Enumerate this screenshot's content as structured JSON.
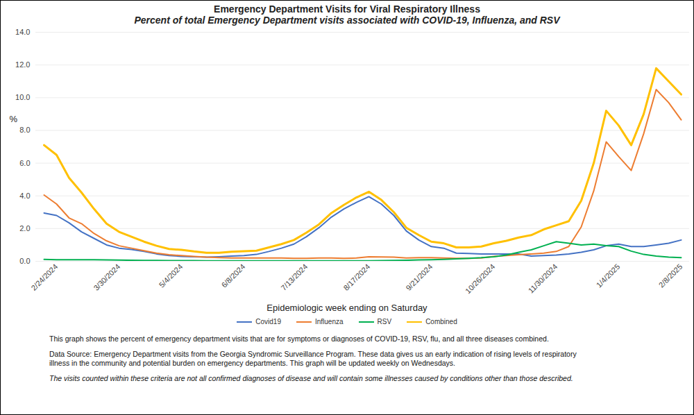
{
  "chart_data": {
    "type": "line",
    "title": "Emergency Department Visits for Viral Respiratory Illness",
    "subtitle": "Percent of total Emergency Department visits associated with COVID-19, Influenza, and RSV",
    "xlabel": "Epidemiologic week ending on Saturday",
    "ylabel": "%",
    "categories": [
      null,
      "2/24/2024",
      null,
      null,
      null,
      null,
      "3/30/2024",
      null,
      null,
      null,
      null,
      "5/4/2024",
      null,
      null,
      null,
      null,
      "6/8/2024",
      null,
      null,
      null,
      null,
      "7/13/2024",
      null,
      null,
      null,
      null,
      "8/17/2024",
      null,
      null,
      null,
      null,
      "9/21/2024",
      null,
      null,
      null,
      null,
      "10/26/2024",
      null,
      null,
      null,
      null,
      "11/30/2024",
      null,
      null,
      null,
      null,
      "1/4/2025",
      null,
      null,
      null,
      null,
      "2/8/2025"
    ],
    "series": [
      {
        "name": "Covid19",
        "color": "#4472c4",
        "values": [
          2.95,
          2.8,
          2.35,
          1.8,
          1.4,
          1.0,
          0.8,
          0.72,
          0.6,
          0.45,
          0.35,
          0.3,
          0.28,
          0.25,
          0.28,
          0.32,
          0.35,
          0.42,
          0.6,
          0.8,
          1.05,
          1.5,
          2.05,
          2.7,
          3.2,
          3.6,
          3.95,
          3.5,
          2.8,
          1.85,
          1.3,
          0.9,
          0.8,
          0.5,
          0.48,
          0.45,
          0.45,
          0.45,
          0.45,
          0.32,
          0.35,
          0.38,
          0.45,
          0.55,
          0.7,
          0.95,
          1.05,
          0.9,
          0.9,
          1.0,
          1.1,
          1.3
        ]
      },
      {
        "name": "Influenza",
        "color": "#ed7d31",
        "values": [
          4.05,
          3.5,
          2.65,
          2.3,
          1.7,
          1.25,
          0.95,
          0.8,
          0.65,
          0.5,
          0.4,
          0.35,
          0.3,
          0.25,
          0.22,
          0.2,
          0.2,
          0.2,
          0.2,
          0.2,
          0.18,
          0.18,
          0.2,
          0.2,
          0.18,
          0.2,
          0.28,
          0.27,
          0.25,
          0.2,
          0.22,
          0.22,
          0.2,
          0.18,
          0.18,
          0.2,
          0.3,
          0.35,
          0.4,
          0.45,
          0.5,
          0.6,
          0.9,
          2.1,
          4.3,
          7.3,
          6.4,
          5.55,
          7.8,
          10.5,
          9.7,
          8.65
        ]
      },
      {
        "name": "RSV",
        "color": "#00b050",
        "values": [
          0.12,
          0.1,
          0.1,
          0.1,
          0.1,
          0.08,
          0.07,
          0.06,
          0.05,
          0.05,
          0.04,
          0.04,
          0.04,
          0.03,
          0.03,
          0.03,
          0.03,
          0.03,
          0.03,
          0.03,
          0.03,
          0.03,
          0.03,
          0.03,
          0.03,
          0.03,
          0.03,
          0.04,
          0.05,
          0.06,
          0.08,
          0.1,
          0.12,
          0.15,
          0.18,
          0.22,
          0.28,
          0.38,
          0.55,
          0.7,
          0.95,
          1.2,
          1.1,
          1.0,
          1.05,
          0.95,
          0.9,
          0.62,
          0.42,
          0.32,
          0.25,
          0.22
        ]
      },
      {
        "name": "Combined",
        "color": "#ffc000",
        "values": [
          7.1,
          6.5,
          5.1,
          4.2,
          3.2,
          2.3,
          1.8,
          1.5,
          1.2,
          0.95,
          0.75,
          0.7,
          0.6,
          0.52,
          0.52,
          0.58,
          0.62,
          0.65,
          0.85,
          1.05,
          1.3,
          1.75,
          2.25,
          2.95,
          3.45,
          3.9,
          4.25,
          3.75,
          3.0,
          2.05,
          1.6,
          1.2,
          1.1,
          0.85,
          0.85,
          0.9,
          1.1,
          1.25,
          1.45,
          1.6,
          1.95,
          2.2,
          2.45,
          3.7,
          6.0,
          9.2,
          8.3,
          7.1,
          9.0,
          11.8,
          11.0,
          10.2
        ]
      }
    ],
    "ylim": [
      0,
      14
    ],
    "yticks": [
      {
        "value": 0,
        "label": "0.0"
      },
      {
        "value": 2,
        "label": "2.0"
      },
      {
        "value": 4,
        "label": "4.0"
      },
      {
        "value": 6,
        "label": "6.0"
      },
      {
        "value": 8,
        "label": "8.0"
      },
      {
        "value": 10,
        "label": "10.0"
      },
      {
        "value": 12,
        "label": "12.0"
      },
      {
        "value": 14,
        "label": "14.0"
      }
    ],
    "grid": true,
    "legend": "bottom",
    "notes": [
      "This graph shows the percent of emergency department visits that are for symptoms or diagnoses of COVID-19, RSV, flu, and all three diseases combined.",
      "Data Source: Emergency Department visits from the Georgia Syndromic Surveillance Program. These data gives us an early indication of rising levels of respiratory illness in the community and potential burden on emergency departments. This graph will be updated weekly on Wednesdays.",
      "The visits counted within these criteria are not all confirmed diagnoses of disease and will contain some illnesses caused by conditions other than those described."
    ]
  }
}
